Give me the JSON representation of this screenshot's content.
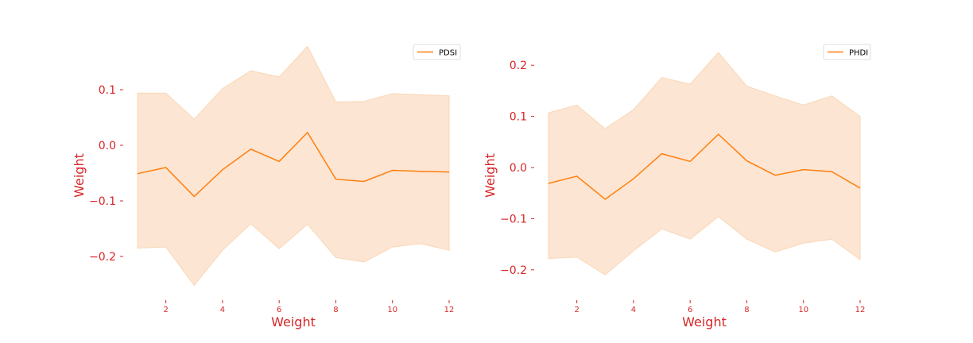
{
  "chart_data": [
    {
      "type": "area",
      "title": "",
      "xlabel": "Weight",
      "ylabel": "Weight",
      "xlim": [
        1,
        12
      ],
      "ylim": [
        -0.27,
        0.19
      ],
      "xticks": [
        2,
        4,
        6,
        8,
        10,
        12
      ],
      "yticks": [
        0.1,
        0.0,
        -0.1,
        -0.2
      ],
      "ytick_labels": [
        "0.1",
        "0.0",
        "−0.1",
        "−0.2"
      ],
      "grid": false,
      "legend": "top-right",
      "x": [
        1,
        2,
        3,
        4,
        5,
        6,
        7,
        8,
        9,
        10,
        11,
        12
      ],
      "series": [
        {
          "name": "PDSI",
          "values": [
            -0.051,
            -0.04,
            -0.092,
            -0.044,
            -0.007,
            -0.029,
            0.023,
            -0.061,
            -0.065,
            -0.045,
            -0.047,
            -0.048
          ],
          "lower": [
            -0.185,
            -0.183,
            -0.252,
            -0.189,
            -0.141,
            -0.186,
            -0.142,
            -0.202,
            -0.21,
            -0.183,
            -0.177,
            -0.189
          ],
          "upper": [
            0.094,
            0.094,
            0.047,
            0.102,
            0.134,
            0.123,
            0.178,
            0.078,
            0.079,
            0.093,
            0.091,
            0.089
          ]
        }
      ],
      "colors": {
        "line": "#ff7f0e",
        "band": "#fce5d2",
        "text": "#d62728"
      }
    },
    {
      "type": "area",
      "title": "",
      "xlabel": "Weight",
      "ylabel": "Weight",
      "xlim": [
        1,
        12
      ],
      "ylim": [
        -0.25,
        0.25
      ],
      "xticks": [
        2,
        4,
        6,
        8,
        10,
        12
      ],
      "yticks": [
        0.2,
        0.1,
        0.0,
        -0.1,
        -0.2
      ],
      "ytick_labels": [
        "0.2",
        "0.1",
        "0.0",
        "−0.1",
        "−0.2"
      ],
      "grid": false,
      "legend": "top-right",
      "x": [
        1,
        2,
        3,
        4,
        5,
        6,
        7,
        8,
        9,
        10,
        11,
        12
      ],
      "series": [
        {
          "name": "PHDI",
          "values": [
            -0.031,
            -0.017,
            -0.062,
            -0.022,
            0.027,
            0.012,
            0.065,
            0.013,
            -0.015,
            -0.004,
            -0.008,
            -0.04
          ],
          "lower": [
            -0.178,
            -0.175,
            -0.21,
            -0.163,
            -0.12,
            -0.14,
            -0.096,
            -0.14,
            -0.165,
            -0.148,
            -0.14,
            -0.18
          ],
          "upper": [
            0.107,
            0.122,
            0.076,
            0.113,
            0.176,
            0.163,
            0.225,
            0.159,
            0.14,
            0.122,
            0.14,
            0.1
          ]
        }
      ],
      "colors": {
        "line": "#ff7f0e",
        "band": "#fce5d2",
        "text": "#d62728"
      }
    }
  ]
}
